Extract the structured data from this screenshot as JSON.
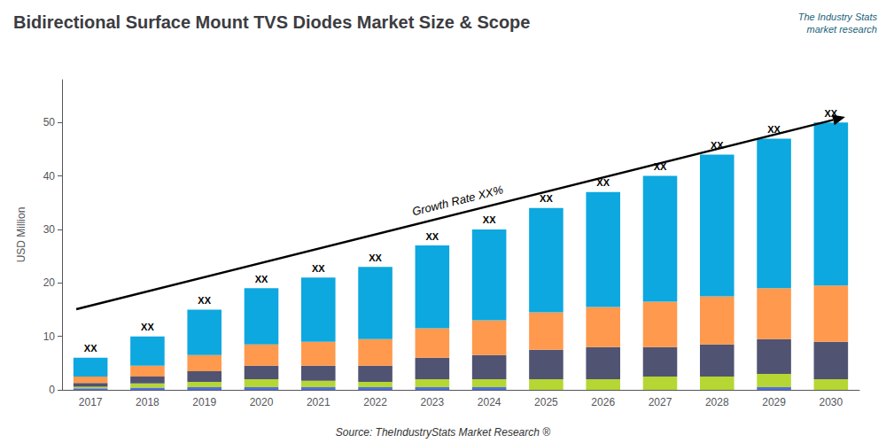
{
  "chart_data": {
    "type": "bar",
    "stacked": true,
    "title": "Bidirectional Surface Mount TVS Diodes Market Size & Scope",
    "ylabel": "USD Million",
    "categories": [
      "2017",
      "2018",
      "2019",
      "2020",
      "2021",
      "2022",
      "2023",
      "2024",
      "2025",
      "2026",
      "2027",
      "2028",
      "2029",
      "2030"
    ],
    "series": [
      {
        "values": [
          0.3,
          0.4,
          0.5,
          0.5,
          0.5,
          0.5,
          0.5,
          0.5,
          0.0,
          0.0,
          0.0,
          0.0,
          0.5,
          0.0
        ]
      },
      {
        "values": [
          0.3,
          0.8,
          1.0,
          1.5,
          1.2,
          1.0,
          1.5,
          1.5,
          2.0,
          2.0,
          2.5,
          2.5,
          2.5,
          2.0
        ]
      },
      {
        "values": [
          0.7,
          1.3,
          2.0,
          2.5,
          2.8,
          3.0,
          4.0,
          4.5,
          5.5,
          6.0,
          5.5,
          6.0,
          6.5,
          7.0
        ]
      },
      {
        "values": [
          1.2,
          2.0,
          3.0,
          4.0,
          4.5,
          5.0,
          5.5,
          6.5,
          7.0,
          7.5,
          8.5,
          9.0,
          9.5,
          10.5
        ]
      },
      {
        "values": [
          3.5,
          5.5,
          8.5,
          10.5,
          12.0,
          13.5,
          15.5,
          17.0,
          19.5,
          21.5,
          23.5,
          26.5,
          28.0,
          30.5
        ]
      }
    ],
    "bar_labels": [
      "XX",
      "XX",
      "XX",
      "XX",
      "XX",
      "XX",
      "XX",
      "XX",
      "XX",
      "XX",
      "XX",
      "XX",
      "XX",
      "XX"
    ],
    "annotations": {
      "growth_label": "Growth Rate XX%",
      "source": "Source: TheIndustryStats Market Research ®",
      "logo": "The Industry Stats\nmarket research"
    },
    "ylim": [
      0,
      58
    ],
    "yticks": [
      0,
      10,
      20,
      30,
      40,
      50
    ],
    "grid": false
  }
}
